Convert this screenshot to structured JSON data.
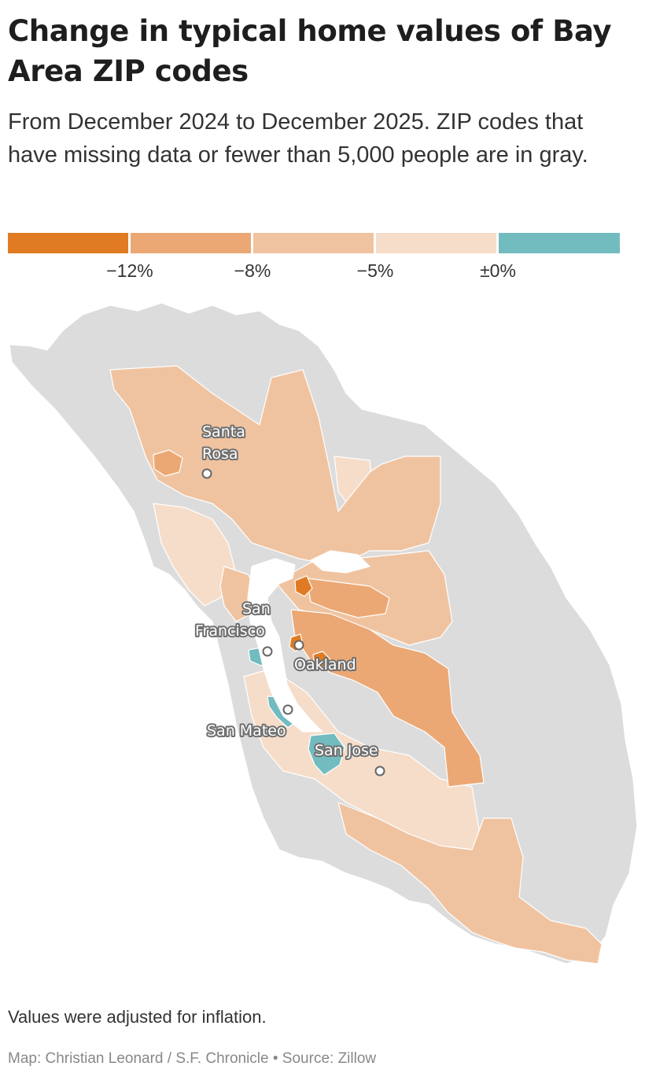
{
  "header": {
    "title": "Change in typical home values of Bay Area ZIP codes",
    "subtitle": "From December 2024 to December 2025. ZIP codes that have missing data or fewer than 5,000 people are in gray."
  },
  "legend": {
    "bins": [
      {
        "color": "#e07b24"
      },
      {
        "color": "#eba874"
      },
      {
        "color": "#f0c3a0"
      },
      {
        "color": "#f6ddc9"
      },
      {
        "color": "#72bcc0"
      }
    ],
    "ticks": [
      "−12%",
      "−8%",
      "−5%",
      "±0%"
    ]
  },
  "map": {
    "colors": {
      "no_data": "#dcdcdc",
      "border": "#ffffff",
      "water": "#ffffff"
    },
    "cities": [
      {
        "id": "santa-rosa",
        "label_lines": [
          "Santa",
          "Rosa"
        ]
      },
      {
        "id": "san-francisco",
        "label_lines": [
          "San",
          "Francisco"
        ]
      },
      {
        "id": "oakland",
        "label_lines": [
          "Oakland"
        ]
      },
      {
        "id": "san-mateo",
        "label_lines": [
          "San Mateo"
        ]
      },
      {
        "id": "san-jose",
        "label_lines": [
          "San Jose"
        ]
      }
    ]
  },
  "footer": {
    "note": "Values were adjusted for inflation.",
    "credit": "Map: Christian Leonard / S.F. Chronicle • Source: Zillow"
  }
}
